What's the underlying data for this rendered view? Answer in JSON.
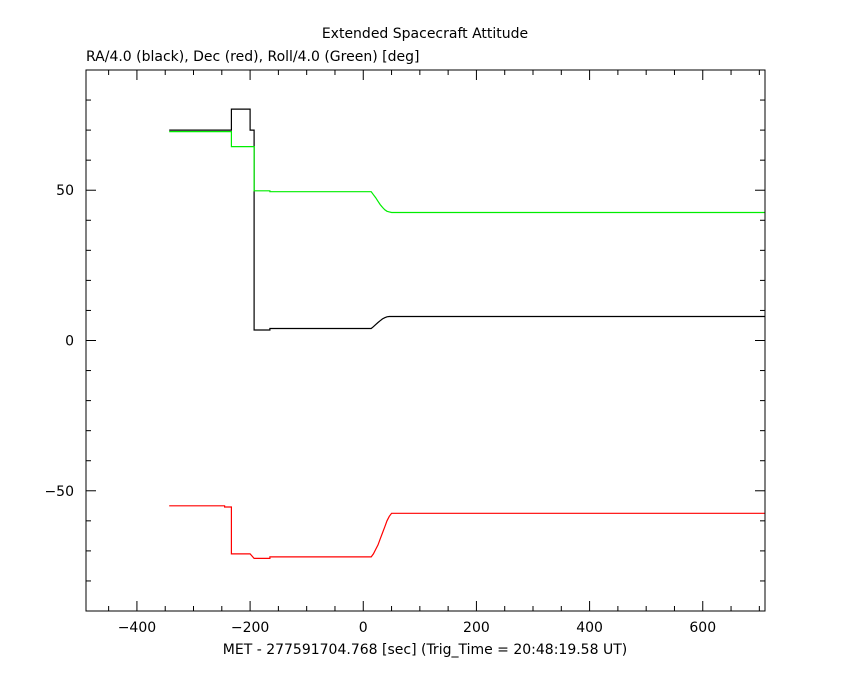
{
  "chart_data": {
    "type": "line",
    "title": "Extended Spacecraft Attitude",
    "subtitle": "RA/4.0 (black), Dec (red), Roll/4.0 (Green) [deg]",
    "xlabel": "MET - 277591704.768 [sec] (Trig_Time = 20:48:19.58 UT)",
    "ylabel": "",
    "xlim": [
      -490,
      710
    ],
    "ylim": [
      -90,
      90
    ],
    "x_ticks": [
      -400,
      -200,
      0,
      200,
      400,
      600
    ],
    "x_tick_labels": [
      "−400",
      "−200",
      "0",
      "200",
      "400",
      "600"
    ],
    "y_ticks": [
      -50,
      0,
      50
    ],
    "y_tick_labels": [
      "−50",
      "0",
      "50"
    ],
    "x_minor_step": 50,
    "y_minor_step": 10,
    "grid": false,
    "series": [
      {
        "color": "#000000",
        "x": [
          -343,
          -233,
          -233,
          -200,
          -200,
          -193,
          -193,
          -165,
          -165,
          0,
          14,
          18,
          22,
          26,
          30,
          34,
          38,
          42,
          46,
          50,
          710
        ],
        "y": [
          70,
          70,
          77,
          77,
          70,
          70,
          3.5,
          3.5,
          4,
          4,
          4,
          4.6,
          5.3,
          6.0,
          6.6,
          7.2,
          7.6,
          7.9,
          8.0,
          8.0,
          8.0
        ]
      },
      {
        "color": "#ff0000",
        "x": [
          -343,
          -245,
          -245,
          -233,
          -233,
          -200,
          -200,
          -193,
          -193,
          -165,
          -165,
          0,
          14,
          18,
          22,
          26,
          30,
          34,
          38,
          42,
          46,
          50,
          710
        ],
        "y": [
          -55,
          -55,
          -55.4,
          -55.4,
          -71,
          -71,
          -71,
          -72.5,
          -72.5,
          -72.5,
          -72,
          -72,
          -72,
          -71,
          -69.5,
          -68,
          -66,
          -64,
          -62,
          -60,
          -58.5,
          -57.5,
          -57.5
        ]
      },
      {
        "color": "#00ee00",
        "x": [
          -343,
          -233,
          -233,
          -200,
          -200,
          -193,
          -193,
          -165,
          -165,
          0,
          14,
          18,
          22,
          26,
          30,
          34,
          38,
          42,
          46,
          50,
          710
        ],
        "y": [
          69.5,
          69.5,
          64.5,
          64.5,
          64.5,
          64.5,
          49.8,
          49.8,
          49.5,
          49.5,
          49.5,
          48.5,
          47.5,
          46.3,
          45.2,
          44.3,
          43.5,
          43.0,
          42.8,
          42.6,
          42.6
        ]
      }
    ]
  }
}
